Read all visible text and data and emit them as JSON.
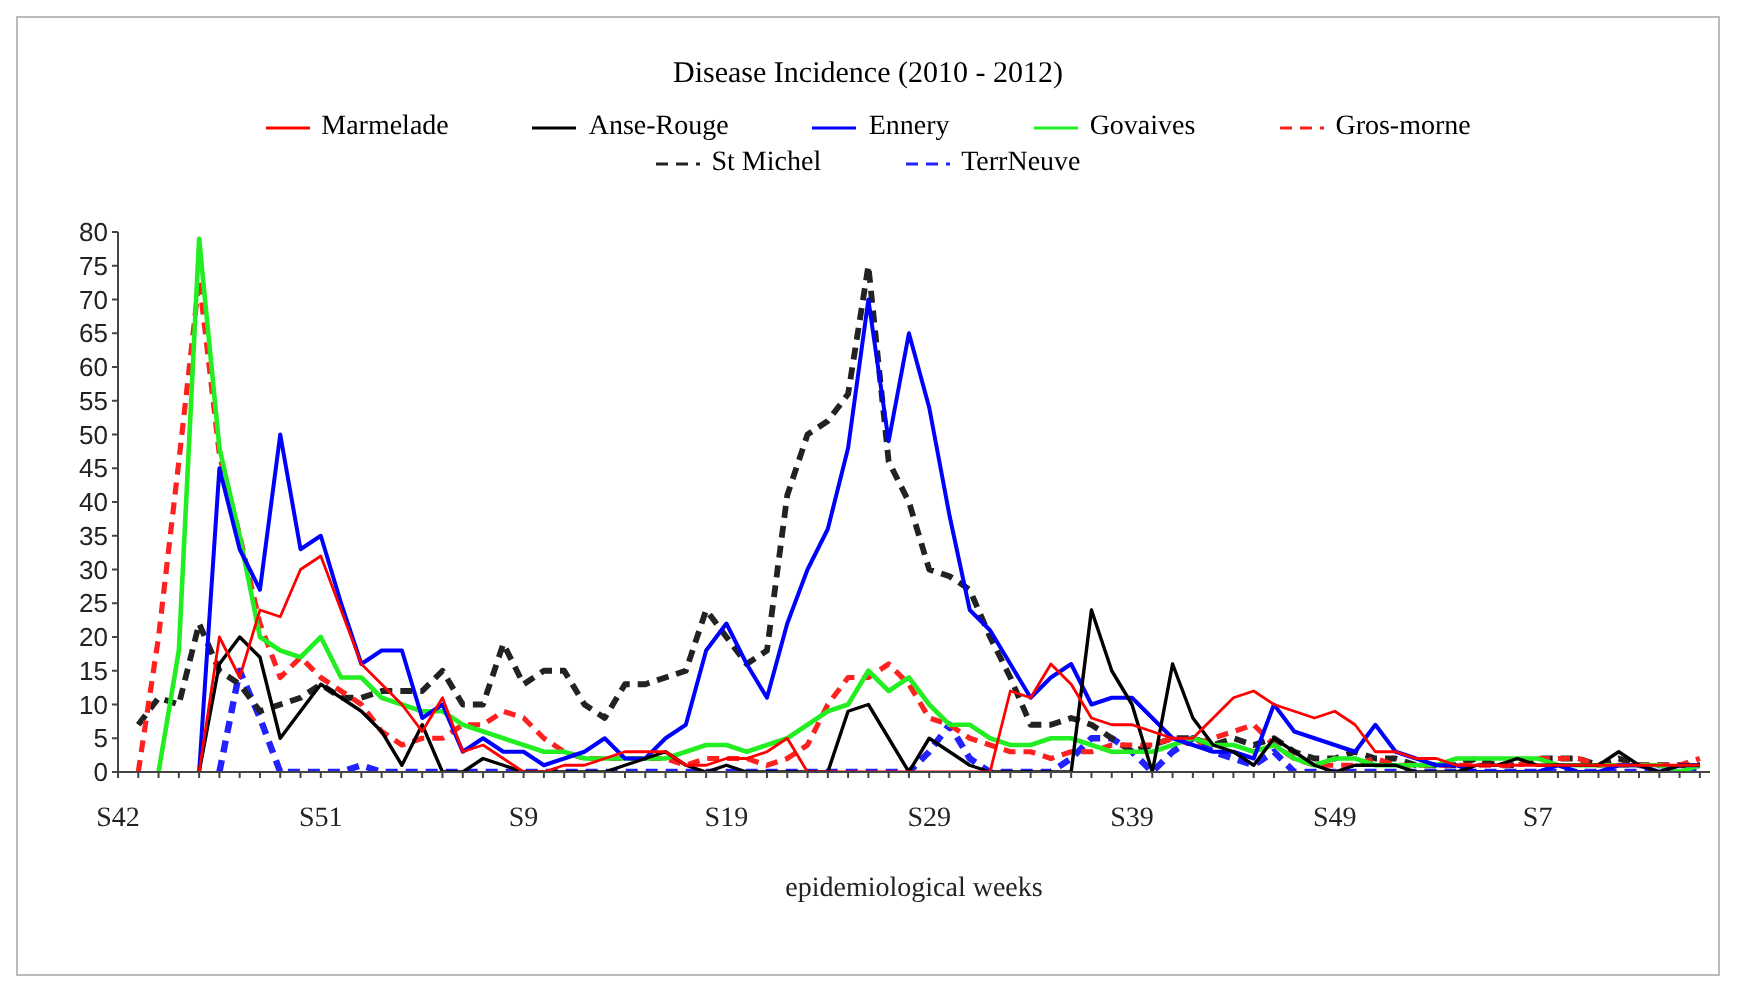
{
  "chart_data": {
    "type": "line",
    "title": "Disease Incidence (2010 - 2012)",
    "xlabel": "epidemiological weeks",
    "categories": [
      "S42",
      null,
      null,
      null,
      null,
      null,
      null,
      null,
      null,
      null,
      "S51",
      null,
      null,
      null,
      null,
      null,
      null,
      null,
      null,
      null,
      "S9",
      null,
      null,
      null,
      null,
      null,
      null,
      null,
      null,
      null,
      "S19",
      null,
      null,
      null,
      null,
      null,
      null,
      null,
      null,
      null,
      "S29",
      null,
      null,
      null,
      null,
      null,
      null,
      null,
      null,
      null,
      "S39",
      null,
      null,
      null,
      null,
      null,
      null,
      null,
      null,
      null,
      "S49",
      null,
      null,
      null,
      null,
      null,
      null,
      null,
      null,
      null,
      "S7",
      null,
      null,
      null,
      null,
      null,
      null,
      null,
      null
    ],
    "series": [
      {
        "name": "Marmelade",
        "color": "#ff0000",
        "line_style": "solid",
        "values": [
          null,
          null,
          null,
          null,
          0,
          20,
          14,
          24,
          23,
          30,
          32,
          24,
          16,
          13,
          10,
          6,
          11,
          3,
          4,
          2,
          0,
          0,
          1,
          1,
          2,
          3,
          3,
          3,
          1,
          1,
          2,
          2,
          3,
          5,
          0,
          0,
          0,
          0,
          0,
          0,
          0,
          0,
          0,
          0,
          12,
          11,
          16,
          13,
          8,
          7,
          7,
          6,
          5,
          5,
          8,
          11,
          12,
          10,
          9,
          8,
          9,
          7,
          3,
          3,
          2,
          2,
          1,
          1,
          1,
          1,
          1,
          1,
          1,
          1,
          1,
          1,
          1,
          1,
          1
        ]
      },
      {
        "name": "Anse-Rouge",
        "color": "#000000",
        "line_style": "solid",
        "values": [
          null,
          null,
          null,
          null,
          0,
          16,
          20,
          17,
          5,
          9,
          13,
          11,
          9,
          6,
          1,
          7,
          0,
          0,
          2,
          1,
          0,
          0,
          0,
          0,
          0,
          1,
          2,
          3,
          1,
          0,
          1,
          0,
          0,
          0,
          0,
          0,
          9,
          10,
          5,
          0,
          5,
          3,
          1,
          0,
          0,
          0,
          0,
          0,
          24,
          15,
          10,
          0,
          16,
          8,
          4,
          3,
          1,
          5,
          3,
          1,
          0,
          1,
          1,
          1,
          0,
          0,
          0,
          1,
          1,
          2,
          1,
          1,
          1,
          1,
          3,
          1,
          0,
          1,
          1
        ]
      },
      {
        "name": "Ennery",
        "color": "#0000ff",
        "line_style": "solid",
        "values": [
          null,
          null,
          null,
          null,
          0,
          45,
          33,
          27,
          50,
          33,
          35,
          25,
          16,
          18,
          18,
          8,
          10,
          3,
          5,
          3,
          3,
          1,
          2,
          3,
          5,
          2,
          2,
          5,
          7,
          18,
          22,
          16,
          11,
          22,
          30,
          36,
          48,
          70,
          49,
          65,
          54,
          38,
          24,
          21,
          16,
          11,
          14,
          16,
          10,
          11,
          11,
          8,
          5,
          4,
          3,
          3,
          2,
          10,
          6,
          5,
          4,
          3,
          7,
          3,
          2,
          1,
          1,
          0,
          0,
          0,
          0,
          1,
          0,
          0,
          1,
          1,
          0,
          1,
          1
        ]
      },
      {
        "name": "Govaives",
        "color": "#22ee22",
        "line_style": "solid",
        "values": [
          null,
          null,
          0,
          18,
          79,
          48,
          35,
          20,
          18,
          17,
          20,
          14,
          14,
          11,
          10,
          9,
          9,
          7,
          6,
          5,
          4,
          3,
          3,
          2,
          2,
          2,
          2,
          2,
          3,
          4,
          4,
          3,
          4,
          5,
          7,
          9,
          10,
          15,
          12,
          14,
          10,
          7,
          7,
          5,
          4,
          4,
          5,
          5,
          4,
          3,
          3,
          3,
          4,
          5,
          4,
          4,
          3,
          4,
          2,
          1,
          2,
          2,
          1,
          1,
          1,
          1,
          2,
          2,
          2,
          2,
          2,
          1,
          1,
          1,
          1,
          1,
          1,
          0,
          1
        ]
      },
      {
        "name": "Gros-morne",
        "color": "#ff2020",
        "line_style": "dashed",
        "values": [
          null,
          0,
          20,
          46,
          73,
          47,
          35,
          22,
          14,
          17,
          14,
          12,
          10,
          6,
          4,
          5,
          5,
          7,
          7,
          9,
          8,
          5,
          3,
          2,
          2,
          2,
          2,
          2,
          1,
          2,
          2,
          2,
          1,
          2,
          4,
          10,
          14,
          14,
          16,
          13,
          8,
          7,
          5,
          4,
          3,
          3,
          2,
          3,
          3,
          4,
          4,
          4,
          5,
          4,
          5,
          6,
          7,
          4,
          2,
          1,
          1,
          1,
          2,
          1,
          1,
          1,
          1,
          1,
          1,
          1,
          2,
          2,
          2,
          1,
          1,
          1,
          1,
          1,
          2
        ]
      },
      {
        "name": "St Michel",
        "color": "#222222",
        "line_style": "dashed",
        "values": [
          null,
          7,
          11,
          10,
          22,
          15,
          13,
          9,
          10,
          11,
          13,
          11,
          11,
          12,
          12,
          12,
          15,
          10,
          10,
          19,
          13,
          15,
          15,
          10,
          8,
          13,
          13,
          14,
          15,
          24,
          20,
          16,
          18,
          41,
          50,
          52,
          56,
          75,
          46,
          40,
          30,
          29,
          27,
          20,
          14,
          7,
          7,
          8,
          7,
          5,
          3,
          4,
          5,
          5,
          4,
          5,
          4,
          5,
          3,
          2,
          2,
          3,
          2,
          2,
          1,
          1,
          1,
          2,
          1,
          1,
          2,
          2,
          2,
          1,
          2,
          1,
          1,
          1,
          1
        ]
      },
      {
        "name": "TerrNeuve",
        "color": "#2222ff",
        "line_style": "dashed",
        "values": [
          null,
          null,
          null,
          null,
          null,
          0,
          15,
          8,
          0,
          0,
          0,
          0,
          1,
          0,
          0,
          0,
          0,
          0,
          0,
          0,
          0,
          0,
          0,
          0,
          0,
          0,
          0,
          0,
          0,
          0,
          0,
          0,
          0,
          0,
          0,
          0,
          0,
          0,
          0,
          0,
          3,
          7,
          2,
          0,
          0,
          0,
          0,
          2,
          5,
          5,
          3,
          0,
          3,
          5,
          3,
          2,
          1,
          3,
          0,
          0,
          0,
          0,
          0,
          0,
          0,
          0,
          0,
          0,
          0,
          0,
          0,
          0,
          0,
          0,
          0,
          0,
          0,
          0,
          0
        ]
      }
    ],
    "ylim": [
      0,
      80
    ],
    "yticks": [
      0,
      5,
      10,
      15,
      20,
      25,
      30,
      35,
      40,
      45,
      50,
      55,
      60,
      65,
      70,
      75,
      80
    ],
    "legend": "top",
    "grid": false,
    "marker": "none"
  }
}
